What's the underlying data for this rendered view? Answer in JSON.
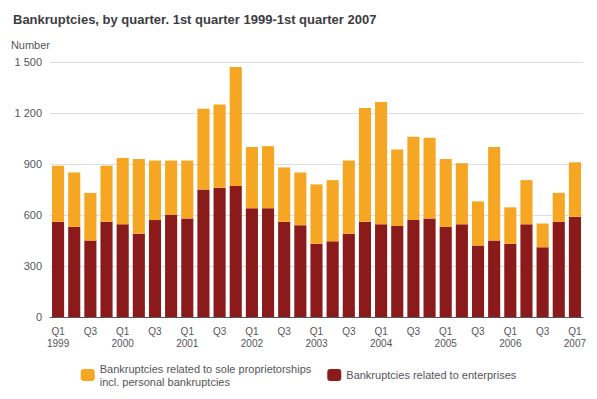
{
  "chart_data": {
    "type": "bar",
    "stacked": true,
    "title": "Bankruptcies, by quarter. 1st quarter 1999-1st quarter 2007",
    "y_label": "Number",
    "categories": [
      "Q1\n1999",
      null,
      "Q3",
      null,
      "Q1\n2000",
      null,
      "Q3",
      null,
      "Q1\n2001",
      null,
      "Q3",
      null,
      "Q1\n2002",
      null,
      "Q3",
      null,
      "Q1\n2003",
      null,
      "Q3",
      null,
      "Q1\n2004",
      null,
      "Q3",
      null,
      "Q1\n2005",
      null,
      "Q3",
      null,
      "Q1\n2006",
      null,
      "Q3",
      null,
      "Q1\n2007"
    ],
    "series": [
      {
        "name": "Bankruptcies related to enterprises",
        "color": "#8B1A1A",
        "values": [
          560,
          530,
          450,
          560,
          545,
          490,
          570,
          600,
          580,
          750,
          760,
          770,
          640,
          640,
          560,
          540,
          430,
          445,
          490,
          560,
          545,
          535,
          570,
          580,
          530,
          545,
          420,
          450,
          430,
          545,
          410,
          560,
          590
        ]
      },
      {
        "name": "Bankruptcies related to sole proprietorships\nincl. personal bankruptcies",
        "color": "#F5A623",
        "values": [
          330,
          320,
          280,
          330,
          390,
          440,
          350,
          320,
          340,
          475,
          490,
          700,
          360,
          365,
          320,
          310,
          350,
          360,
          430,
          670,
          720,
          450,
          490,
          475,
          400,
          360,
          260,
          550,
          215,
          260,
          140,
          170,
          320
        ]
      }
    ],
    "ylim": [
      0,
      1500
    ],
    "yticks": [
      0,
      300,
      600,
      900,
      {
        "value": 1200,
        "label": "1 200"
      },
      {
        "value": 1500,
        "label": "1 500"
      }
    ],
    "grid": true,
    "legend": "bottom"
  }
}
